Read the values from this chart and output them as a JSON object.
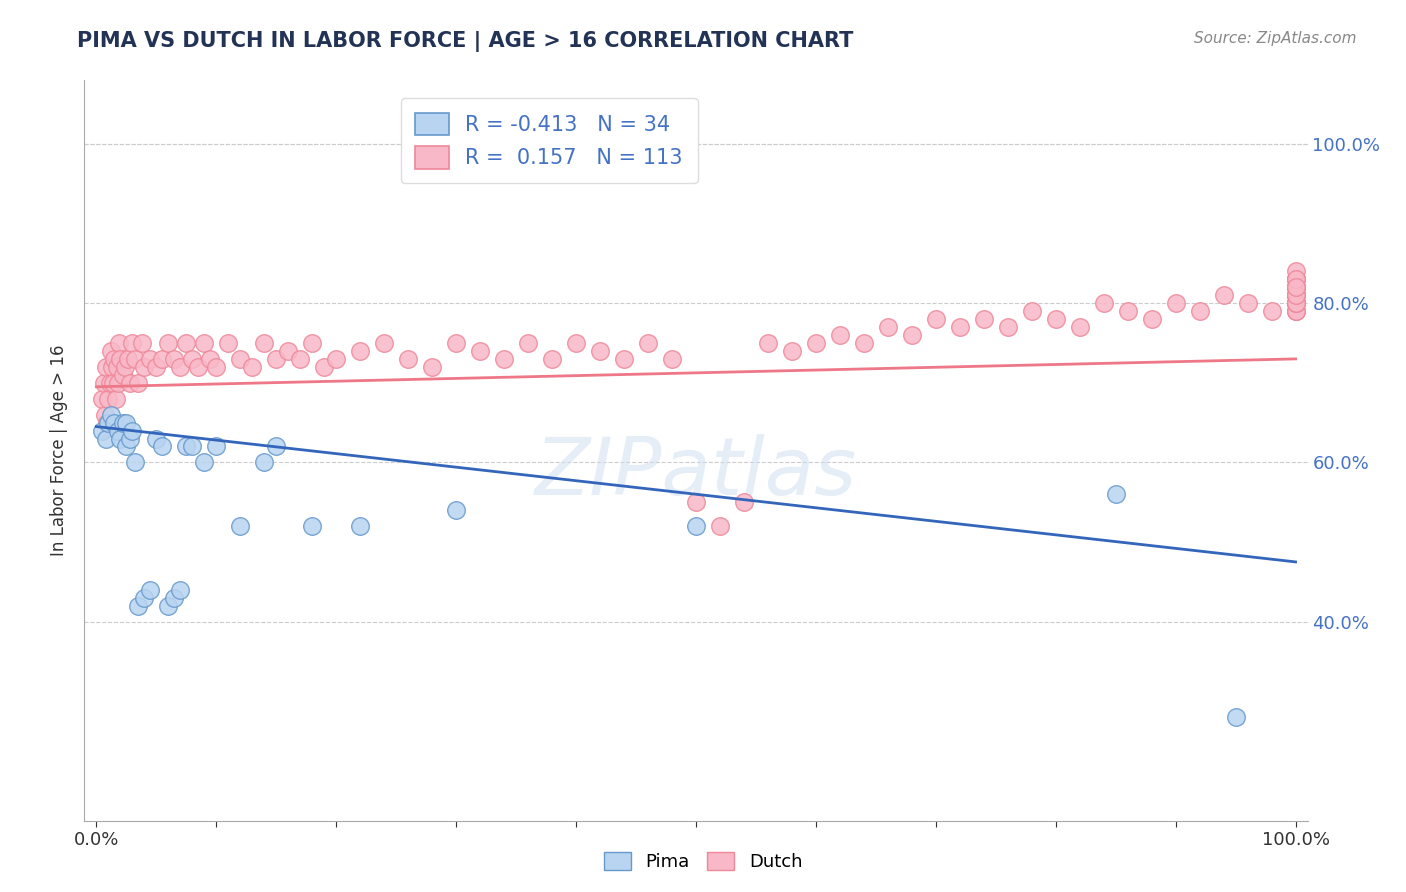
{
  "title": "PIMA VS DUTCH IN LABOR FORCE | AGE > 16 CORRELATION CHART",
  "source": "Source: ZipAtlas.com",
  "ylabel": "In Labor Force | Age > 16",
  "xlim": [
    -0.01,
    1.01
  ],
  "ylim": [
    0.15,
    1.08
  ],
  "x_tick_labels_show": [
    "0.0%",
    "100.0%"
  ],
  "x_tick_positions_show": [
    0.0,
    1.0
  ],
  "y_ticks_right": [
    0.4,
    0.6,
    0.8,
    1.0
  ],
  "y_tick_labels_right": [
    "40.0%",
    "60.0%",
    "80.0%",
    "100.0%"
  ],
  "pima_fill_color": "#b8d4f0",
  "dutch_fill_color": "#f8b8c8",
  "pima_edge_color": "#6699cc",
  "dutch_edge_color": "#ee8899",
  "pima_line_color": "#3366bb",
  "dutch_line_color": "#ee7788",
  "pima_R": -0.413,
  "pima_N": 34,
  "dutch_R": 0.157,
  "dutch_N": 113,
  "background_color": "#ffffff",
  "grid_color": "#cccccc",
  "title_color": "#223355",
  "axis_label_color": "#333333",
  "right_tick_color": "#4472c4",
  "watermark": "ZIPatlas",
  "pima_x": [
    0.005,
    0.008,
    0.01,
    0.012,
    0.015,
    0.018,
    0.02,
    0.022,
    0.025,
    0.025,
    0.028,
    0.03,
    0.032,
    0.035,
    0.04,
    0.045,
    0.05,
    0.055,
    0.06,
    0.065,
    0.07,
    0.075,
    0.08,
    0.09,
    0.1,
    0.12,
    0.14,
    0.15,
    0.18,
    0.22,
    0.3,
    0.5,
    0.85,
    0.95
  ],
  "pima_y": [
    0.64,
    0.63,
    0.65,
    0.66,
    0.65,
    0.64,
    0.63,
    0.65,
    0.65,
    0.62,
    0.63,
    0.64,
    0.6,
    0.42,
    0.43,
    0.44,
    0.63,
    0.62,
    0.42,
    0.43,
    0.44,
    0.62,
    0.62,
    0.6,
    0.62,
    0.52,
    0.6,
    0.62,
    0.52,
    0.52,
    0.54,
    0.52,
    0.56,
    0.28
  ],
  "dutch_x": [
    0.005,
    0.006,
    0.007,
    0.008,
    0.009,
    0.01,
    0.011,
    0.012,
    0.013,
    0.014,
    0.015,
    0.016,
    0.017,
    0.018,
    0.019,
    0.02,
    0.022,
    0.024,
    0.026,
    0.028,
    0.03,
    0.032,
    0.035,
    0.038,
    0.04,
    0.045,
    0.05,
    0.055,
    0.06,
    0.065,
    0.07,
    0.075,
    0.08,
    0.085,
    0.09,
    0.095,
    0.1,
    0.11,
    0.12,
    0.13,
    0.14,
    0.15,
    0.16,
    0.17,
    0.18,
    0.19,
    0.2,
    0.22,
    0.24,
    0.26,
    0.28,
    0.3,
    0.32,
    0.34,
    0.36,
    0.38,
    0.4,
    0.42,
    0.44,
    0.46,
    0.48,
    0.5,
    0.52,
    0.54,
    0.56,
    0.58,
    0.6,
    0.62,
    0.64,
    0.66,
    0.68,
    0.7,
    0.72,
    0.74,
    0.76,
    0.78,
    0.8,
    0.82,
    0.84,
    0.86,
    0.88,
    0.9,
    0.92,
    0.94,
    0.96,
    0.98,
    1.0,
    1.0,
    1.0,
    1.0,
    1.0,
    1.0,
    1.0,
    1.0,
    1.0,
    1.0,
    1.0,
    1.0,
    1.0,
    1.0,
    1.0,
    1.0,
    1.0,
    1.0,
    1.0,
    1.0,
    1.0,
    1.0,
    1.0,
    1.0,
    1.0,
    1.0,
    1.0
  ],
  "dutch_y": [
    0.68,
    0.7,
    0.66,
    0.72,
    0.65,
    0.68,
    0.7,
    0.74,
    0.72,
    0.7,
    0.73,
    0.68,
    0.72,
    0.7,
    0.75,
    0.73,
    0.71,
    0.72,
    0.73,
    0.7,
    0.75,
    0.73,
    0.7,
    0.75,
    0.72,
    0.73,
    0.72,
    0.73,
    0.75,
    0.73,
    0.72,
    0.75,
    0.73,
    0.72,
    0.75,
    0.73,
    0.72,
    0.75,
    0.73,
    0.72,
    0.75,
    0.73,
    0.74,
    0.73,
    0.75,
    0.72,
    0.73,
    0.74,
    0.75,
    0.73,
    0.72,
    0.75,
    0.74,
    0.73,
    0.75,
    0.73,
    0.75,
    0.74,
    0.73,
    0.75,
    0.73,
    0.55,
    0.52,
    0.55,
    0.75,
    0.74,
    0.75,
    0.76,
    0.75,
    0.77,
    0.76,
    0.78,
    0.77,
    0.78,
    0.77,
    0.79,
    0.78,
    0.77,
    0.8,
    0.79,
    0.78,
    0.8,
    0.79,
    0.81,
    0.8,
    0.79,
    0.8,
    0.82,
    0.83,
    0.79,
    0.81,
    0.8,
    0.82,
    0.79,
    0.81,
    0.8,
    0.82,
    0.81,
    0.8,
    0.82,
    0.79,
    0.81,
    0.83,
    0.8,
    0.82,
    0.81,
    0.83,
    0.8,
    0.82,
    0.81,
    0.84,
    0.83,
    0.82
  ],
  "pima_trend_x0": 0.0,
  "pima_trend_x1": 1.0,
  "pima_trend_y0": 0.645,
  "pima_trend_y1": 0.475,
  "dutch_trend_x0": 0.0,
  "dutch_trend_x1": 1.0,
  "dutch_trend_y0": 0.695,
  "dutch_trend_y1": 0.73
}
